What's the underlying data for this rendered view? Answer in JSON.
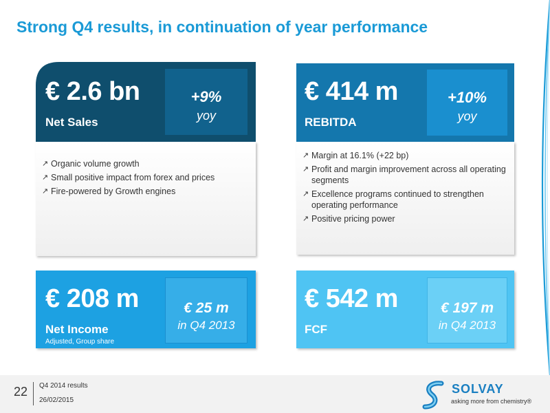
{
  "title": "Strong Q4 results, in continuation of year performance",
  "cards": {
    "net_sales": {
      "value": "€ 2.6 bn",
      "label": "Net Sales",
      "change": "+9%",
      "change_unit": "yoy",
      "bullets": [
        "Organic volume growth",
        "Small positive impact from forex and prices",
        "Fire-powered by Growth engines"
      ]
    },
    "rebitda": {
      "value": "€ 414 m",
      "label": "REBITDA",
      "change": "+10%",
      "change_unit": "yoy",
      "bullets": [
        "Margin at 16.1% (+22 bp)",
        "Profit and margin improvement across all operating segments",
        "Excellence programs continued to strengthen operating performance",
        "Positive pricing power"
      ]
    },
    "net_income": {
      "value": "€ 208 m",
      "label": "Net Income",
      "note": "Adjusted, Group share",
      "compare_value": "€ 25 m",
      "compare_label": "in Q4 2013"
    },
    "fcf": {
      "value": "€ 542 m",
      "label": "FCF",
      "compare_value": "€ 197 m",
      "compare_label": "in Q4 2013"
    }
  },
  "bullet_glyph": "↗",
  "footer": {
    "page_number": "22",
    "line1": "Q4 2014 results",
    "line2": "26/02/2015"
  },
  "logo": {
    "name": "SOLVAY",
    "tagline": "asking more from chemistry®"
  },
  "colors": {
    "title": "#1a9ad6",
    "dark_blue": "#0f4e6d",
    "mid_blue": "#1477ad",
    "card_blue": "#1da1e2",
    "light_blue": "#4fc4f3"
  }
}
